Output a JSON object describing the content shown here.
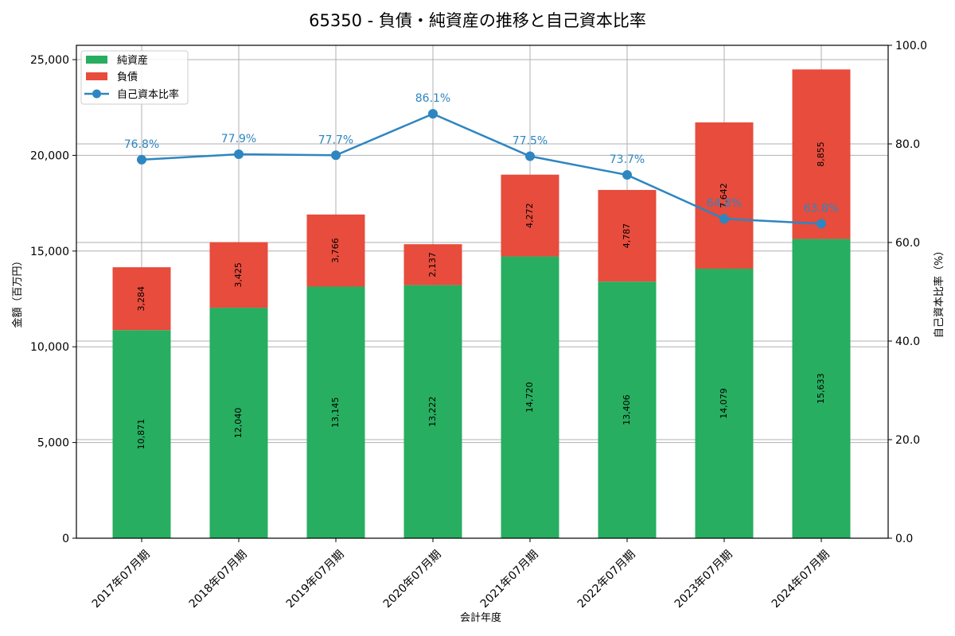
{
  "chart_data": {
    "type": "bar",
    "title": "65350 - 負債・純資産の推移と自己資本比率",
    "xlabel": "会計年度",
    "ylabel": "金額（百万円）",
    "y2label": "自己資本比率（%）",
    "ylim": [
      0,
      25748
    ],
    "y2lim": [
      0,
      100
    ],
    "yticks": [
      "0",
      "5,000",
      "10,000",
      "15,000",
      "20,000",
      "25,000"
    ],
    "ytick_values": [
      0,
      5000,
      10000,
      15000,
      20000,
      25000
    ],
    "y2ticks": [
      "0.0",
      "20.0",
      "40.0",
      "60.0",
      "80.0",
      "100.0"
    ],
    "y2tick_values": [
      0,
      20,
      40,
      60,
      80,
      100
    ],
    "grid": true,
    "legend_position": "upper left",
    "categories": [
      "2017年07月期",
      "2018年07月期",
      "2019年07月期",
      "2020年07月期",
      "2021年07月期",
      "2022年07月期",
      "2023年07月期",
      "2024年07月期"
    ],
    "series": [
      {
        "name": "純資産",
        "type": "bar",
        "stack": true,
        "color": "#27ae60",
        "values": [
          10871,
          12040,
          13145,
          13222,
          14720,
          13406,
          14079,
          15633
        ],
        "labels": [
          "10,871",
          "12,040",
          "13,145",
          "13,222",
          "14,720",
          "13,406",
          "14,079",
          "15,633"
        ]
      },
      {
        "name": "負債",
        "type": "bar",
        "stack": true,
        "color": "#e74c3c",
        "values": [
          3284,
          3425,
          3766,
          2137,
          4272,
          4787,
          7642,
          8855
        ],
        "labels": [
          "3,284",
          "3,425",
          "3,766",
          "2,137",
          "4,272",
          "4,787",
          "7,642",
          "8,855"
        ]
      },
      {
        "name": "自己資本比率",
        "type": "line",
        "axis": "right",
        "color": "#2e86c1",
        "values": [
          76.8,
          77.9,
          77.7,
          86.1,
          77.5,
          73.7,
          64.8,
          63.8
        ],
        "labels": [
          "76.8%",
          "77.9%",
          "77.7%",
          "86.1%",
          "77.5%",
          "73.7%",
          "64.8%",
          "63.8%"
        ]
      }
    ]
  }
}
